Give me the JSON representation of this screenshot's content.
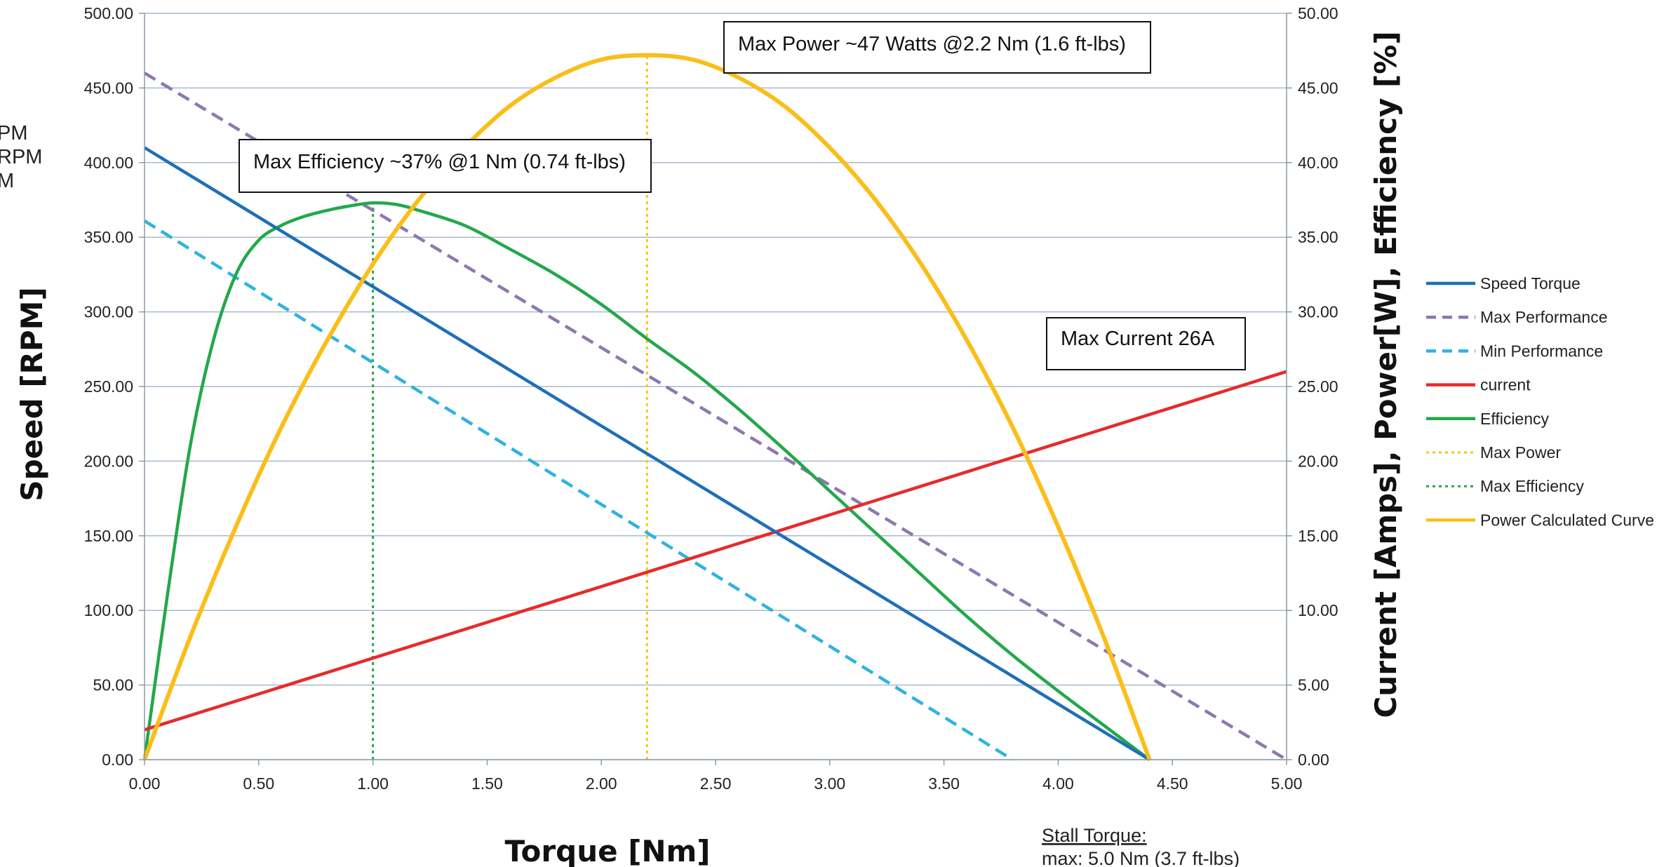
{
  "chart_data": {
    "type": "line",
    "xlabel": "Torque [Nm]",
    "ylabel_left": "Speed [RPM]",
    "ylabel_right": "Current [Amps], Power[W], Efficiency [%]",
    "xlim": [
      0,
      5
    ],
    "ylim_left": [
      0,
      500
    ],
    "ylim_right": [
      0,
      50
    ],
    "x_ticks": [
      "0.00",
      "0.50",
      "1.00",
      "1.50",
      "2.00",
      "2.50",
      "3.00",
      "3.50",
      "4.00",
      "4.50",
      "5.00"
    ],
    "y_left_ticks": [
      "0.00",
      "50.00",
      "100.00",
      "150.00",
      "200.00",
      "250.00",
      "300.00",
      "350.00",
      "400.00",
      "450.00",
      "500.00"
    ],
    "y_right_ticks": [
      "0.00",
      "5.00",
      "10.00",
      "15.00",
      "20.00",
      "25.00",
      "30.00",
      "35.00",
      "40.00",
      "45.00",
      "50.00"
    ],
    "grid": true,
    "legend_position": "right",
    "series": [
      {
        "name": "Speed Torque",
        "axis": "left",
        "color": "#1F6FB8",
        "dash": "solid",
        "points": [
          [
            0,
            410
          ],
          [
            4.4,
            0
          ]
        ]
      },
      {
        "name": "Max Performance",
        "axis": "left",
        "color": "#8E78B0",
        "dash": "dashed",
        "points": [
          [
            0,
            460
          ],
          [
            5.0,
            0
          ]
        ]
      },
      {
        "name": "Min Performance",
        "axis": "left",
        "color": "#2EB3E0",
        "dash": "dashed",
        "points": [
          [
            0,
            361
          ],
          [
            3.8,
            0
          ]
        ]
      },
      {
        "name": "current",
        "axis": "right",
        "color": "#E62B2B",
        "dash": "solid",
        "points": [
          [
            0,
            2.0
          ],
          [
            5.0,
            26.0
          ]
        ]
      },
      {
        "name": "Efficiency",
        "axis": "right",
        "color": "#22A84A",
        "dash": "solid",
        "points": [
          [
            0,
            0
          ],
          [
            0.1,
            11
          ],
          [
            0.2,
            21
          ],
          [
            0.3,
            28
          ],
          [
            0.4,
            32.5
          ],
          [
            0.5,
            34.8
          ],
          [
            0.6,
            35.8
          ],
          [
            0.7,
            36.4
          ],
          [
            0.8,
            36.8
          ],
          [
            0.9,
            37.1
          ],
          [
            1.0,
            37.3
          ],
          [
            1.1,
            37.2
          ],
          [
            1.2,
            36.8
          ],
          [
            1.4,
            35.8
          ],
          [
            1.6,
            34.2
          ],
          [
            1.8,
            32.5
          ],
          [
            2.0,
            30.5
          ],
          [
            2.2,
            28.2
          ],
          [
            2.4,
            26.0
          ],
          [
            2.6,
            23.5
          ],
          [
            2.8,
            20.8
          ],
          [
            3.0,
            18.0
          ],
          [
            3.2,
            15.2
          ],
          [
            3.4,
            12.4
          ],
          [
            3.6,
            9.6
          ],
          [
            3.8,
            7.0
          ],
          [
            4.0,
            4.6
          ],
          [
            4.2,
            2.3
          ],
          [
            4.4,
            0
          ]
        ]
      },
      {
        "name": "Max Power",
        "axis": "right",
        "color": "#F5C518",
        "dash": "dotted",
        "points": [
          [
            2.2,
            0
          ],
          [
            2.2,
            47.2
          ]
        ]
      },
      {
        "name": "Max Efficiency",
        "axis": "right",
        "color": "#22A84A",
        "dash": "dotted",
        "points": [
          [
            1.0,
            0
          ],
          [
            1.0,
            37.3
          ]
        ]
      },
      {
        "name": "Power Calculated Curve",
        "axis": "right",
        "color": "#FBBE19",
        "dash": "solid",
        "points": [
          [
            0,
            0
          ],
          [
            0.2,
            8.2
          ],
          [
            0.4,
            15.6
          ],
          [
            0.6,
            22.3
          ],
          [
            0.8,
            28.1
          ],
          [
            1.0,
            33.2
          ],
          [
            1.2,
            37.5
          ],
          [
            1.4,
            41.0
          ],
          [
            1.6,
            43.8
          ],
          [
            1.8,
            45.7
          ],
          [
            2.0,
            46.9
          ],
          [
            2.2,
            47.2
          ],
          [
            2.4,
            46.9
          ],
          [
            2.6,
            45.7
          ],
          [
            2.8,
            43.8
          ],
          [
            3.0,
            41.0
          ],
          [
            3.2,
            37.5
          ],
          [
            3.4,
            33.2
          ],
          [
            3.6,
            28.1
          ],
          [
            3.8,
            22.3
          ],
          [
            4.0,
            15.6
          ],
          [
            4.2,
            8.2
          ],
          [
            4.4,
            0
          ]
        ]
      }
    ],
    "annotations": [
      "Max Power  ~47 Watts @2.2 Nm (1.6 ft-lbs)",
      "Max Efficiency ~37% @1 Nm (0.74 ft-lbs)",
      "Max Current 26A"
    ],
    "footnote": {
      "title": "Stall Torque:",
      "text": "max: 5.0 Nm (3.7 ft-lbs)"
    },
    "cut_off_labels": [
      "PM",
      "RPM",
      "M"
    ]
  }
}
